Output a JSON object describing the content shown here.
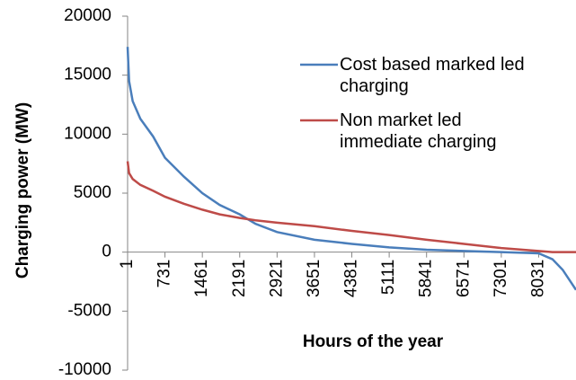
{
  "chart_data": {
    "type": "line",
    "xlabel": "Hours of the year",
    "ylabel": "Charging power (MW)",
    "x": [
      1,
      30,
      100,
      250,
      500,
      731,
      1100,
      1461,
      1800,
      2191,
      2500,
      2921,
      3651,
      4381,
      5111,
      5841,
      6571,
      7301,
      8031,
      8300,
      8500,
      8760
    ],
    "series": [
      {
        "name": "Cost based marked led charging",
        "color": "#4a7ebb",
        "values": [
          17400,
          14500,
          12800,
          11300,
          9800,
          8000,
          6400,
          5000,
          4000,
          3200,
          2400,
          1700,
          1050,
          700,
          400,
          200,
          100,
          0,
          -100,
          -600,
          -1500,
          -3200
        ]
      },
      {
        "name": "Non market led immediate charging",
        "color": "#be4b48",
        "values": [
          7700,
          6700,
          6200,
          5700,
          5200,
          4700,
          4100,
          3600,
          3200,
          2900,
          2700,
          2500,
          2200,
          1800,
          1450,
          1050,
          700,
          350,
          100,
          0,
          0,
          0
        ]
      }
    ],
    "xlim": [
      1,
      8760
    ],
    "xticks": [
      1,
      731,
      1461,
      2191,
      2921,
      3651,
      4381,
      5111,
      5841,
      6571,
      7301,
      8031
    ],
    "ylim": [
      -10000,
      20000
    ],
    "yticks": [
      -10000,
      -5000,
      0,
      5000,
      10000,
      15000,
      20000
    ],
    "legend": "upper right"
  }
}
